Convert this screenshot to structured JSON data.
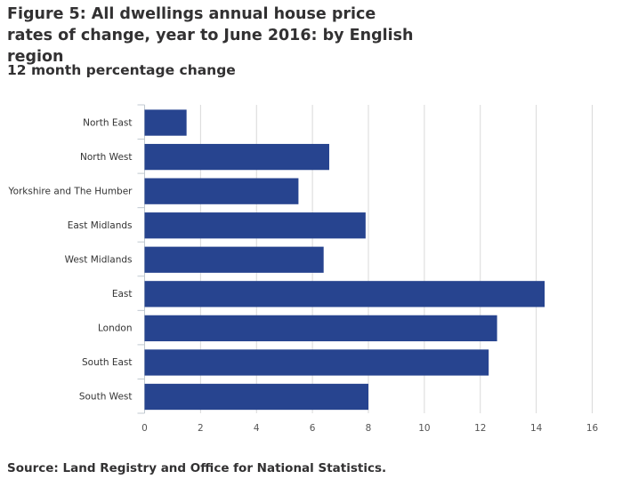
{
  "chart_data": {
    "type": "bar",
    "orientation": "horizontal",
    "title": "Figure 5: All dwellings annual house price rates of change, year to June 2016: by English region",
    "subtitle": "12 month percentage change",
    "source": "Source: Land Registry and Office for National Statistics.",
    "categories": [
      "North East",
      "North West",
      "Yorkshire and The Humber",
      "East Midlands",
      "West Midlands",
      "East",
      "London",
      "South East",
      "South West"
    ],
    "values": [
      1.5,
      6.6,
      5.5,
      7.9,
      6.4,
      14.3,
      12.6,
      12.3,
      8.0
    ],
    "xlim": [
      0,
      16
    ],
    "xticks": [
      "0",
      "2",
      "4",
      "6",
      "8",
      "10",
      "12",
      "14",
      "16"
    ],
    "grid": true,
    "bar_color": "#27448f"
  }
}
